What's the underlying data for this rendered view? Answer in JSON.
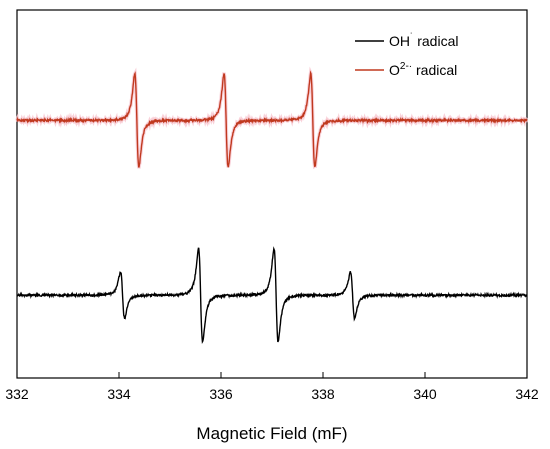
{
  "chart_data": {
    "type": "line",
    "title": "",
    "xlabel": "Magnetic Field (mF)",
    "ylabel": "",
    "xlim": [
      332,
      342
    ],
    "x_ticks": [
      332,
      334,
      336,
      338,
      340,
      342
    ],
    "y_axis_labels": false,
    "grid": false,
    "legend_position": "top-right",
    "series": [
      {
        "name": "OH˙ radical",
        "legend_label": "OH",
        "legend_superscript": "˙",
        "legend_suffix": " radical",
        "color": "#000000",
        "baseline": -0.55,
        "peaks": [
          {
            "x": 334.07,
            "amplitude": 0.15
          },
          {
            "x": 335.6,
            "amplitude": 0.3
          },
          {
            "x": 337.08,
            "amplitude": 0.3
          },
          {
            "x": 338.58,
            "amplitude": 0.15
          }
        ]
      },
      {
        "name": "O2-· radical",
        "legend_label": "O",
        "legend_superscript": "2-·",
        "legend_suffix": "  radical",
        "color": "#c0391f",
        "baseline": 0.4,
        "peaks": [
          {
            "x": 334.35,
            "amplitude": 0.3
          },
          {
            "x": 336.1,
            "amplitude": 0.3
          },
          {
            "x": 337.8,
            "amplitude": 0.3
          }
        ]
      }
    ]
  },
  "colors": {
    "axis": "#000000",
    "pink_halo": "#f7c6d0"
  }
}
